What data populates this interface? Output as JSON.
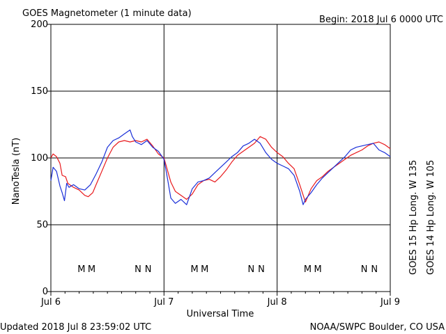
{
  "chart_data": {
    "type": "line",
    "title": "GOES Magnetometer (1 minute data)",
    "begin_label": "Begin:  2018 Jul 6 0000 UTC",
    "xlabel": "Universal Time",
    "ylabel": "NanoTesla (nT)",
    "x_ticks": [
      "Jul 6",
      "Jul 7",
      "Jul 8",
      "Jul 9"
    ],
    "x_range_days": [
      0,
      3
    ],
    "ylim": [
      0,
      200
    ],
    "y_ticks": [
      0,
      50,
      100,
      150,
      200
    ],
    "grid": true,
    "footer_left": "Updated 2018 Jul  8 23:59:02 UTC",
    "footer_right": "NOAA/SWPC Boulder, CO USA",
    "series": [
      {
        "name": "GOES 15 Hp  Long. W 135",
        "color": "#e8191c",
        "x": [
          0.0,
          0.02,
          0.05,
          0.08,
          0.1,
          0.13,
          0.15,
          0.2,
          0.25,
          0.3,
          0.33,
          0.37,
          0.4,
          0.45,
          0.5,
          0.55,
          0.6,
          0.65,
          0.7,
          0.75,
          0.8,
          0.85,
          0.9,
          0.95,
          1.0,
          1.03,
          1.06,
          1.1,
          1.15,
          1.2,
          1.25,
          1.3,
          1.35,
          1.4,
          1.45,
          1.5,
          1.55,
          1.6,
          1.65,
          1.7,
          1.75,
          1.8,
          1.85,
          1.9,
          1.95,
          2.0,
          2.05,
          2.1,
          2.15,
          2.2,
          2.25,
          2.3,
          2.35,
          2.4,
          2.45,
          2.5,
          2.55,
          2.6,
          2.65,
          2.7,
          2.75,
          2.8,
          2.85,
          2.9,
          2.95,
          3.0
        ],
        "y": [
          100,
          103,
          101,
          96,
          87,
          86,
          81,
          78,
          76,
          72,
          71,
          74,
          80,
          90,
          100,
          108,
          112,
          113,
          112,
          113,
          112,
          114,
          109,
          103,
          100,
          91,
          82,
          75,
          72,
          69,
          73,
          80,
          83,
          84,
          82,
          86,
          91,
          97,
          102,
          105,
          108,
          111,
          116,
          114,
          108,
          104,
          101,
          96,
          92,
          80,
          67,
          77,
          83,
          86,
          90,
          93,
          96,
          99,
          102,
          104,
          106,
          109,
          111,
          112,
          110,
          107
        ],
        "markers": [
          {
            "label": "M",
            "day": 0.36
          },
          {
            "label": "N",
            "day": 0.86
          },
          {
            "label": "M",
            "day": 1.36
          },
          {
            "label": "N",
            "day": 1.86
          },
          {
            "label": "M",
            "day": 2.36
          },
          {
            "label": "N",
            "day": 2.86
          }
        ]
      },
      {
        "name": "GOES 14 Hp  Long. W 105",
        "color": "#1a2fd8",
        "x": [
          0.0,
          0.02,
          0.05,
          0.08,
          0.1,
          0.12,
          0.14,
          0.16,
          0.2,
          0.25,
          0.3,
          0.35,
          0.4,
          0.45,
          0.5,
          0.55,
          0.6,
          0.65,
          0.7,
          0.72,
          0.75,
          0.8,
          0.85,
          0.9,
          0.95,
          1.0,
          1.03,
          1.06,
          1.1,
          1.15,
          1.2,
          1.25,
          1.3,
          1.35,
          1.4,
          1.45,
          1.5,
          1.55,
          1.6,
          1.65,
          1.7,
          1.75,
          1.8,
          1.85,
          1.9,
          1.95,
          2.0,
          2.05,
          2.1,
          2.15,
          2.2,
          2.23,
          2.25,
          2.3,
          2.35,
          2.4,
          2.45,
          2.5,
          2.55,
          2.6,
          2.65,
          2.7,
          2.75,
          2.8,
          2.85,
          2.9,
          2.95,
          3.0
        ],
        "y": [
          83,
          93,
          90,
          79,
          74,
          68,
          81,
          78,
          80,
          77,
          76,
          80,
          88,
          97,
          108,
          113,
          115,
          118,
          121,
          116,
          112,
          110,
          113,
          108,
          105,
          99,
          85,
          70,
          66,
          69,
          65,
          77,
          82,
          83,
          85,
          89,
          93,
          97,
          101,
          104,
          109,
          111,
          114,
          111,
          104,
          99,
          96,
          94,
          92,
          87,
          75,
          65,
          69,
          74,
          80,
          85,
          89,
          93,
          97,
          101,
          106,
          108,
          109,
          110,
          111,
          106,
          104,
          101
        ],
        "markers": [
          {
            "label": "M",
            "day": 0.27
          },
          {
            "label": "N",
            "day": 0.77
          },
          {
            "label": "M",
            "day": 1.27
          },
          {
            "label": "N",
            "day": 1.77
          },
          {
            "label": "M",
            "day": 2.27
          },
          {
            "label": "N",
            "day": 2.77
          }
        ]
      }
    ]
  }
}
